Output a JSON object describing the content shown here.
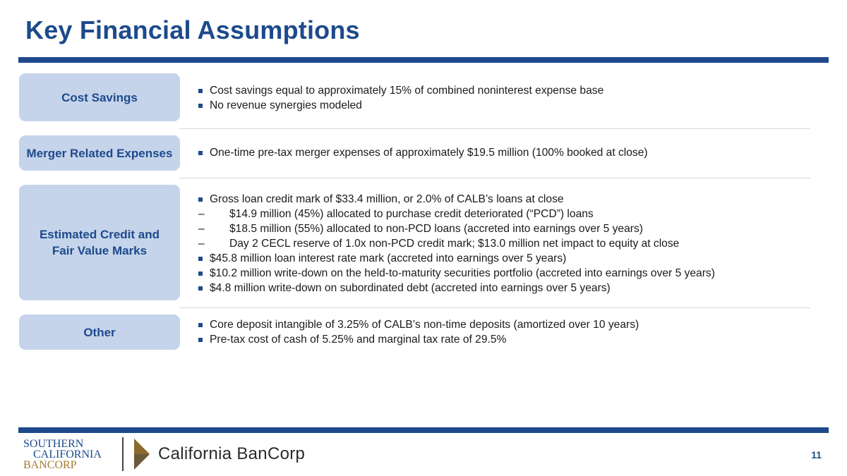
{
  "title": "Key Financial Assumptions",
  "sections": [
    {
      "label": "Cost Savings",
      "bullets": [
        "Cost savings equal to approximately 15% of combined noninterest expense base",
        "No revenue synergies modeled"
      ]
    },
    {
      "label": "Merger Related Expenses",
      "bullets": [
        "One-time pre-tax merger expenses of approximately $19.5 million (100% booked at close)"
      ]
    },
    {
      "label_line1": "Estimated Credit and",
      "label_line2": "Fair Value Marks",
      "bullets": [
        "Gross loan credit mark of $33.4 million, or 2.0% of CALB’s loans at close",
        "$14.9 million (45%) allocated to purchase credit deteriorated (“PCD”) loans",
        "$18.5 million (55%) allocated to non-PCD loans (accreted into earnings over 5 years)",
        "Day 2 CECL reserve of 1.0x non-PCD credit mark; $13.0 million net impact to equity at close",
        "$45.8 million loan interest rate mark (accreted into earnings over 5 years)",
        "$10.2 million write-down on the held-to-maturity securities portfolio (accreted into earnings over 5 years)",
        "$4.8 million write-down on subordinated debt (accreted into earnings over 5 years)"
      ]
    },
    {
      "label": "Other",
      "bullets": [
        "Core deposit intangible of 3.25% of CALB’s non-time deposits (amortized over 10 years)",
        "Pre-tax cost of cash of 5.25% and marginal tax rate of 29.5%"
      ]
    }
  ],
  "footer": {
    "scb_logo_line1": "Southern",
    "scb_logo_line2": "California",
    "scb_logo_line3": "Bancorp",
    "cbc_logo": "California BanCorp",
    "page_number": "11"
  },
  "colors": {
    "brand_blue": "#1d4a8c",
    "label_fill": "#c5d4ea",
    "gold": "#a37b2e"
  }
}
